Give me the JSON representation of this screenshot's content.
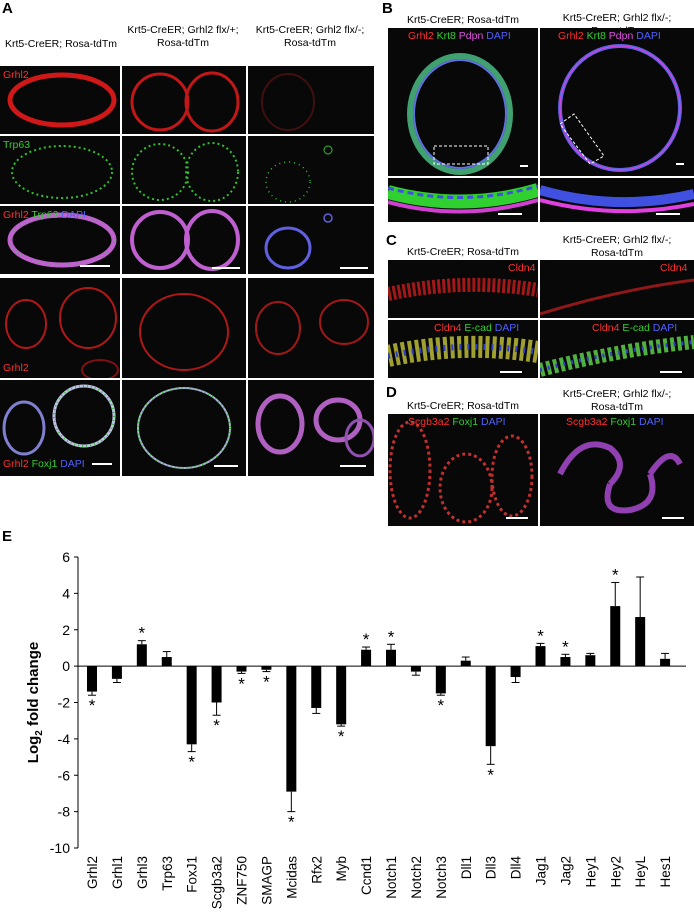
{
  "panel_a": {
    "label": "A",
    "col_headers": [
      "Krt5-CreER; Rosa-tdTm",
      "Krt5-CreER; Grhl2 flx/+;\nRosa-tdTm",
      "Krt5-CreER; Grhl2 flx/-;\nRosa-tdTm"
    ],
    "stains": {
      "grhl2": "Grhl2",
      "trp63": "Trp63",
      "grhl2_trp63_dapi": [
        "Grhl2",
        "Trp63",
        "DAPI"
      ],
      "grhl2_foxj1_dapi": [
        "Grhl2",
        "Foxj1",
        "DAPI"
      ]
    }
  },
  "panel_b": {
    "label": "B",
    "col_headers": [
      "Krt5-CreER; Rosa-tdTm",
      "Krt5-CreER; Grhl2 flx/-;\nRosa-tdTm"
    ],
    "stain": [
      "Grhl2",
      "Krt8",
      "Pdpn",
      "DAPI"
    ]
  },
  "panel_c": {
    "label": "C",
    "col_headers": [
      "Krt5-CreER; Rosa-tdTm",
      "Krt5-CreER; Grhl2 flx/-;\nRosa-tdTm"
    ],
    "stain_top": "Cldn4",
    "stain_bottom": [
      "Cldn4",
      "E-cad",
      "DAPI"
    ]
  },
  "panel_d": {
    "label": "D",
    "col_headers": [
      "Krt5-CreER; Rosa-tdTm",
      "Krt5-CreER; Grhl2 flx/-;\nRosa-tdTm"
    ],
    "stain": [
      "Scgb3a2",
      "Foxj1",
      "DAPI"
    ]
  },
  "panel_e": {
    "label": "E"
  },
  "colors": {
    "red": "#ff3030",
    "green": "#2fd02f",
    "blue": "#5060ff",
    "magenta": "#e050e0",
    "bar": "#000000"
  },
  "chart_data": {
    "type": "bar",
    "ylabel_main": "Log",
    "ylabel_sub": "2",
    "ylabel_rest": " fold change",
    "ylim": [
      -10,
      6
    ],
    "yticks": [
      6,
      4,
      2,
      0,
      -2,
      -4,
      -6,
      -8,
      -10
    ],
    "grid": false,
    "categories": [
      "Grhl2",
      "Grhl1",
      "Grhl3",
      "Trp63",
      "FoxJ1",
      "Scgb3a2",
      "ZNF750",
      "SMAGP",
      "Mcidas",
      "Rfx2",
      "Myb",
      "Ccnd1",
      "Notch1",
      "Notch2",
      "Notch3",
      "Dll1",
      "Dll3",
      "Dll4",
      "Jag1",
      "Jag2",
      "Hey1",
      "Hey2",
      "HeyL",
      "Hes1"
    ],
    "values": [
      -1.4,
      -0.7,
      1.2,
      0.5,
      -4.3,
      -2.0,
      -0.3,
      -0.2,
      -6.9,
      -2.3,
      -3.2,
      0.9,
      0.9,
      -0.3,
      -1.5,
      0.3,
      -4.4,
      -0.6,
      1.1,
      0.5,
      0.6,
      3.3,
      2.7,
      0.4
    ],
    "errors": [
      0.2,
      0.2,
      0.2,
      0.3,
      0.4,
      0.7,
      0.1,
      0.1,
      1.1,
      0.3,
      0.1,
      0.15,
      0.3,
      0.2,
      0.1,
      0.2,
      1.0,
      0.3,
      0.15,
      0.15,
      0.1,
      1.3,
      2.2,
      0.3
    ],
    "significant": [
      true,
      false,
      true,
      false,
      true,
      true,
      true,
      true,
      true,
      false,
      true,
      true,
      true,
      false,
      true,
      false,
      true,
      false,
      true,
      true,
      false,
      true,
      false,
      false
    ],
    "sig_marker": "*"
  }
}
